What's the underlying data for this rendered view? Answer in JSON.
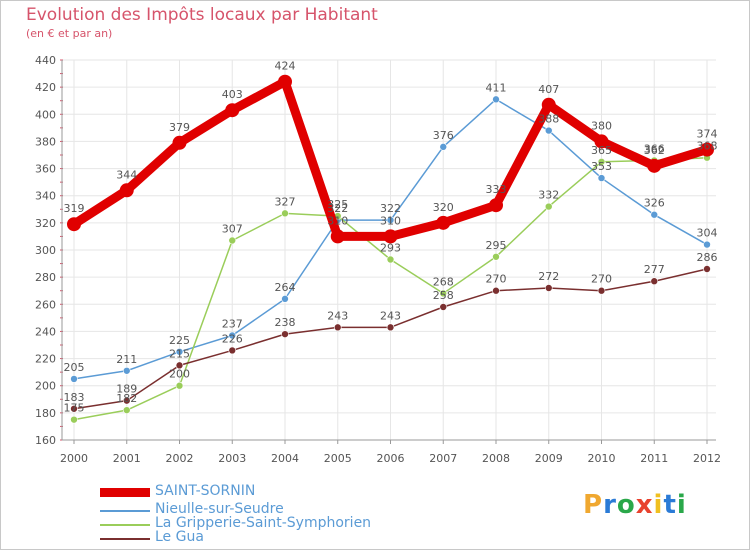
{
  "title": "Evolution des Impôts locaux par Habitant",
  "subtitle": "(en € et par an)",
  "logo": {
    "letters": [
      "P",
      "r",
      "o",
      "x",
      "i",
      "t",
      "i"
    ],
    "colors": [
      "#f0a830",
      "#2b7bd6",
      "#2aa84a",
      "#e8422e",
      "#f0c020",
      "#2b7bd6",
      "#2aa84a"
    ]
  },
  "chart_data": {
    "type": "line",
    "title": "Evolution des Impôts locaux par Habitant",
    "ylabel": "(en € et par an)",
    "ylim": [
      160,
      440
    ],
    "ytick_step": 20,
    "grid": true,
    "categories": [
      "2000",
      "2001",
      "2002",
      "2003",
      "2004",
      "2005",
      "2006",
      "2007",
      "2008",
      "2009",
      "2010",
      "2011",
      "2012"
    ],
    "series": [
      {
        "name": "SAINT-SORNIN",
        "color": "#e00000",
        "values": [
          319,
          344,
          379,
          403,
          424,
          310,
          310,
          320,
          333,
          407,
          380,
          362,
          374
        ],
        "labels": [
          "319",
          "344",
          "379",
          "403",
          "424",
          "310",
          "310",
          "320",
          "333",
          "407",
          "380",
          "362",
          "374"
        ]
      },
      {
        "name": "Nieulle-sur-Seudre",
        "color": "#5b9bd5",
        "values": [
          205,
          211,
          225,
          237,
          264,
          322,
          322,
          376,
          411,
          388,
          353,
          326,
          304
        ],
        "labels": [
          "205",
          "211",
          "225",
          "237",
          "264",
          "322",
          "322",
          "376",
          "411",
          "388",
          "353",
          "326",
          "304"
        ]
      },
      {
        "name": "La Gripperie-Saint-Symphorien",
        "color": "#9acd5a",
        "values": [
          175,
          182,
          200,
          307,
          327,
          325,
          293,
          268,
          295,
          332,
          365,
          366,
          368
        ],
        "labels": [
          "175",
          "182",
          "200",
          "307",
          "327",
          "325",
          "293",
          "268",
          "295",
          "332",
          "365",
          "366",
          "368"
        ]
      },
      {
        "name": "Le Gua",
        "color": "#7a2f2f",
        "values": [
          183,
          189,
          215,
          226,
          238,
          243,
          243,
          258,
          270,
          272,
          270,
          277,
          286
        ],
        "labels": [
          "183",
          "189",
          "215",
          "226",
          "238",
          "243",
          "243",
          "258",
          "270",
          "272",
          "270",
          "277",
          "286"
        ]
      }
    ],
    "legend_position": "bottom-left"
  }
}
